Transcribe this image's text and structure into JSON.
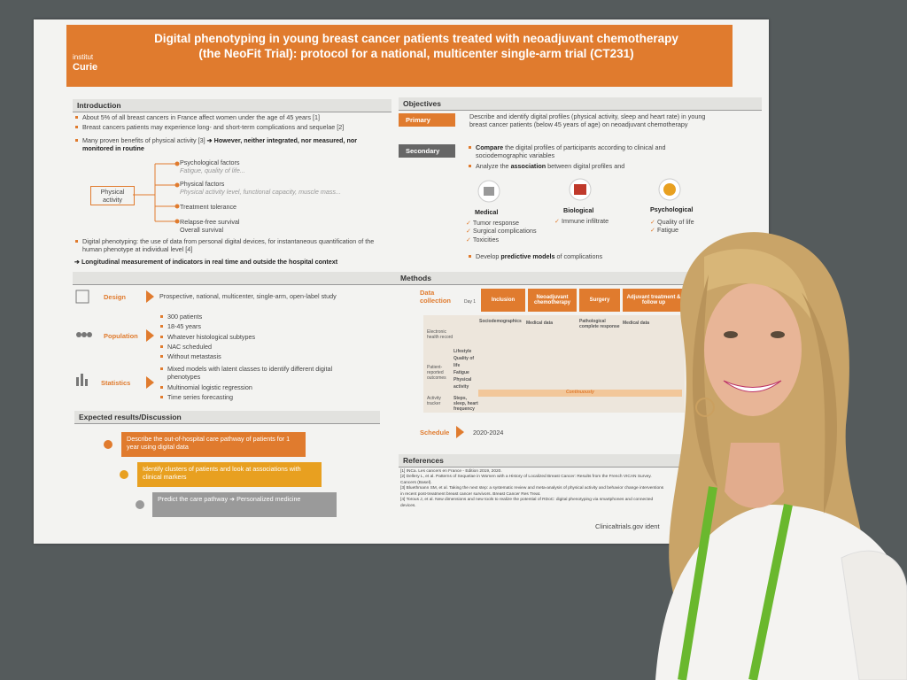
{
  "header": {
    "logo": [
      "institut",
      "Curie"
    ],
    "title": [
      "Digital phenotyping in young breast cancer patients treated with neoadjuvant chemotherapy",
      "(the NeoFit Trial): protocol for a national, multicenter single-arm trial (CT231)"
    ]
  },
  "introduction": {
    "heading": "Introduction",
    "bullets": [
      "About 5% of all breast cancers in France affect women under the age of 45 years [1]",
      "Breast cancers patients may experience long- and short-term complications and sequelae [2]"
    ],
    "benefits": {
      "text": "Many proven benefits of physical activity [3]",
      "bold": "➔ However, neither integrated, nor measured, nor monitored in routine"
    },
    "diagram": {
      "center": "Physical activity",
      "branches": [
        {
          "title": "Psychological factors",
          "sub": "Fatigue, quality of life..."
        },
        {
          "title": "Physical factors",
          "sub": "Physical activity level, functional capacity, muscle mass..."
        },
        {
          "title": "Treatment tolerance"
        },
        {
          "title": "Relapse-free survival",
          "sub": "Overall survival"
        }
      ]
    },
    "phenotyping": "Digital phenotyping: the use of data from personal digital devices, for instantaneous quantification of the human phenotype at individual level [4]",
    "longitudinal": "Longitudinal measurement of indicators in real time and outside the hospital context"
  },
  "objectives": {
    "heading": "Objectives",
    "primary": {
      "label": "Primary",
      "text": "Describe and identify digital profiles (physical activity, sleep and heart rate) in young breast cancer patients (below 45 years of age) on neoadjuvant chemotherapy"
    },
    "secondary": {
      "label": "Secondary",
      "compare": {
        "bold": "Compare",
        "text": "the digital profiles of participants according to clinical and sociodemographic variables"
      },
      "analyze": {
        "text": "Analyze the",
        "bold": "association",
        "rest": "between digital profiles and"
      }
    },
    "groups": [
      {
        "name": "Medical",
        "items": [
          "Tumor response",
          "Surgical complications",
          "Toxicities"
        ]
      },
      {
        "name": "Biological",
        "items": [
          "Immune infiltrate"
        ]
      },
      {
        "name": "Psychological",
        "items": [
          "Quality of life",
          "Fatigue"
        ]
      }
    ],
    "develop": {
      "text": "Develop",
      "bold": "predictive models",
      "rest": "of complications"
    }
  },
  "methods": {
    "heading": "Methods",
    "design": {
      "label": "Design",
      "text": "Prospective, national, multicenter, single-arm, open-label study"
    },
    "population": {
      "label": "Population",
      "items": [
        "300 patients",
        "18-45 years",
        "Whatever histological subtypes",
        "NAC scheduled",
        "Without metastasis"
      ]
    },
    "statistics": {
      "label": "Statistics",
      "items": [
        "Mixed models with latent classes to identify different digital phenotypes",
        "Multinomial logistic regression",
        "Time series forecasting"
      ]
    },
    "data_collection": {
      "label": "Data collection",
      "day": "Day 1",
      "phases": [
        "Inclusion",
        "Neoadjuvant chemotherapy",
        "Surgery",
        "Adjuvant treatment & follow up"
      ],
      "rows": [
        "Electronic health record",
        "Patient-reported outcomes",
        "Activity tracker"
      ],
      "ehr": [
        "Sociodemographics",
        "Medical data",
        "Pathological complete response",
        "Medical data"
      ],
      "pro": [
        "Lifestyle",
        "Quality of life",
        "Fatigue",
        "Physical activity"
      ],
      "tracker": "Steps, sleep, heart frequency",
      "continuously": "Continuously"
    },
    "schedule": {
      "label": "Schedule",
      "text": "2020-2024"
    }
  },
  "expected": {
    "heading": "Expected results/Discussion",
    "steps": [
      "Describe the out-of-hospital care pathway of patients for 1 year using digital data",
      "Identify clusters of patients and look at associations with clinical markers",
      "Predict the care pathway ➔ Personalized medicine"
    ]
  },
  "references": {
    "heading": "References",
    "items": [
      "[1] INCa. Les cancers en France - Edition 2019, 2020.",
      "[2] Dellery L, et al. Patterns of Sequelae in Women with a History of Localized Breast Cancer: Results from the French VICAN Survey. Cancers (Basel).",
      "[3] Bluethmann SM, et al. Taking the next step: a systematic review and meta-analysis of physical activity and behavior change interventions in recent post-treatment breast cancer survivors. Breast Cancer Res Treat.",
      "[4] Torous J, et al. New dimensions and new tools to realize the potential of RDoC: digital phenotyping via smartphones and connected devices."
    ]
  },
  "footer": "Clinicaltrials.gov ident"
}
